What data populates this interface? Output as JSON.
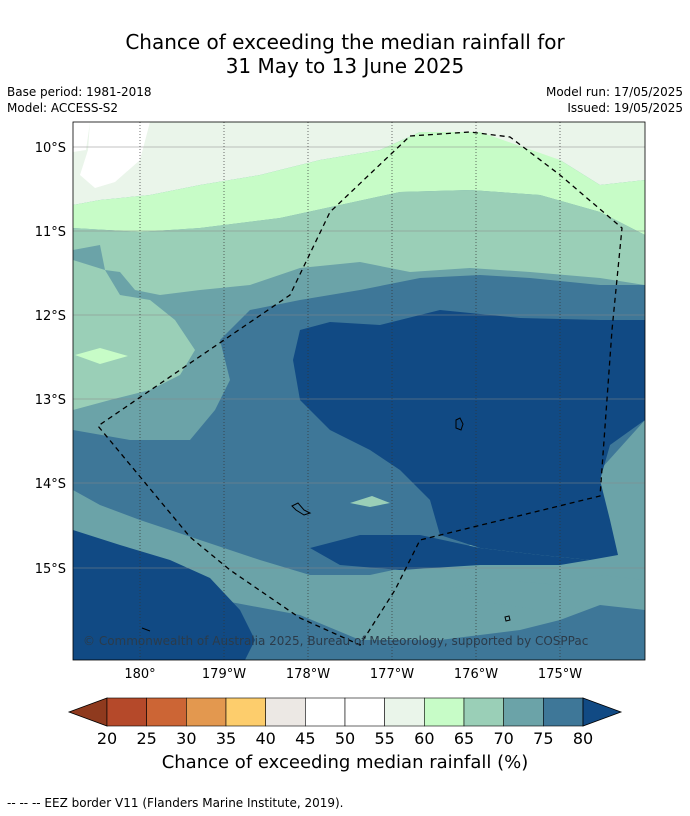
{
  "title": {
    "line1": "Chance of exceeding the median rainfall for",
    "line2": "31 May to 13 June 2025"
  },
  "meta": {
    "base_period": "Base period: 1981-2018",
    "model": "Model: ACCESS-S2",
    "model_run": "Model run: 17/05/2025",
    "issued": "Issued: 19/05/2025"
  },
  "map": {
    "lat_labels": [
      "10°S",
      "11°S",
      "12°S",
      "13°S",
      "14°S",
      "15°S"
    ],
    "lon_labels": [
      "180°",
      "179°W",
      "178°W",
      "177°W",
      "176°W",
      "175°W"
    ],
    "copyright": "© Commonwealth of Australia 2025, Bureau of Meteorology, supported by COSPPac"
  },
  "colorbar": {
    "ticks": [
      "20",
      "25",
      "30",
      "35",
      "40",
      "45",
      "50",
      "55",
      "60",
      "65",
      "70",
      "75",
      "80"
    ],
    "colors": [
      "#8f3a1e",
      "#b5492a",
      "#cc6535",
      "#e3984f",
      "#fdcd6c",
      "#ece8e4",
      "#ffffff",
      "#ffffff",
      "#eaf5ea",
      "#c7fcc7",
      "#9acfb7",
      "#6ba3a8",
      "#3e7798",
      "#114a84"
    ],
    "title": "Chance of exceeding median rainfall (%)"
  },
  "footer": "--  --  -- EEZ border V11 (Flanders Marine Institute, 2019)."
}
